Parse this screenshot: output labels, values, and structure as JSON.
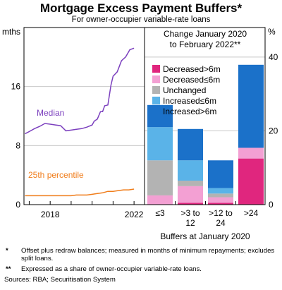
{
  "chart_data": {
    "title": "Mortgage Excess Payment Buffers*",
    "subtitle": "For owner-occupier variable-rate loans",
    "panels": [
      {
        "type": "line",
        "ylabel": "mths",
        "ylim": [
          0,
          24
        ],
        "yticks": [
          "0",
          "8",
          "16"
        ],
        "xticks": [
          "2018",
          "2022"
        ],
        "series": [
          {
            "name": "Median",
            "color": "#7b3fbe",
            "x": [
              2016.8,
              2017.0,
              2017.25,
              2017.5,
              2017.75,
              2018.0,
              2018.25,
              2018.5,
              2018.75,
              2019.0,
              2019.25,
              2019.5,
              2019.75,
              2020.0,
              2020.1,
              2020.25,
              2020.4,
              2020.5,
              2020.6,
              2020.75,
              2020.9,
              2021.0,
              2021.2,
              2021.4,
              2021.6,
              2021.8,
              2022.0
            ],
            "y": [
              9.6,
              9.9,
              10.3,
              10.6,
              11.0,
              10.9,
              10.8,
              10.7,
              10.0,
              10.1,
              10.2,
              10.3,
              10.5,
              10.8,
              11.3,
              11.6,
              12.6,
              12.6,
              13.4,
              13.5,
              16.2,
              17.4,
              18.0,
              19.5,
              20.0,
              21.0,
              21.2
            ]
          },
          {
            "name": "25th percentile",
            "color": "#f07d1b",
            "x": [
              2016.8,
              2017.25,
              2017.75,
              2018.0,
              2018.5,
              2019.0,
              2019.25,
              2019.5,
              2019.75,
              2020.0,
              2020.25,
              2020.5,
              2020.75,
              2021.0,
              2021.25,
              2021.5,
              2021.75,
              2022.0
            ],
            "y": [
              1.2,
              1.2,
              1.2,
              1.2,
              1.2,
              1.2,
              1.3,
              1.3,
              1.3,
              1.4,
              1.5,
              1.6,
              1.8,
              1.8,
              1.9,
              2.0,
              2.0,
              2.1
            ]
          }
        ]
      },
      {
        "type": "bar",
        "stacked": true,
        "title": "Change January 2020\nto February 2022**",
        "ylabel": "%",
        "ylim": [
          0,
          48
        ],
        "yticks": [
          "0",
          "20",
          "40"
        ],
        "xlabel": "Buffers at January 2020",
        "categories": [
          "≤3",
          ">3 to\n12",
          ">12 to\n24",
          ">24"
        ],
        "legend_position": "top-left",
        "series": [
          {
            "name": "Decreased>6m",
            "color": "#e0267e",
            "values": [
              0,
              0.5,
              0.5,
              12.5
            ]
          },
          {
            "name": "Decreased≤6m",
            "color": "#f3a0d3",
            "values": [
              2.5,
              4.5,
              1.5,
              2.9
            ]
          },
          {
            "name": "Unchanged",
            "color": "#b3b3b3",
            "values": [
              9.5,
              1.5,
              1.0,
              0
            ]
          },
          {
            "name": "Increased≤6m",
            "color": "#5ab3e8",
            "values": [
              9.0,
              5.5,
              1.5,
              0
            ]
          },
          {
            "name": "Increased>6m",
            "color": "#1b71c9",
            "values": [
              6.0,
              8.5,
              7.5,
              22.5
            ]
          }
        ]
      }
    ]
  },
  "notes": [
    {
      "mark": "*",
      "text": "Offset plus redraw balances; measured in months of minimum repayments; excludes split loans."
    },
    {
      "mark": "**",
      "text": "Expressed as a share of owner-occupier variable-rate loans."
    }
  ],
  "sources": "Sources: RBA; Securitisation System"
}
